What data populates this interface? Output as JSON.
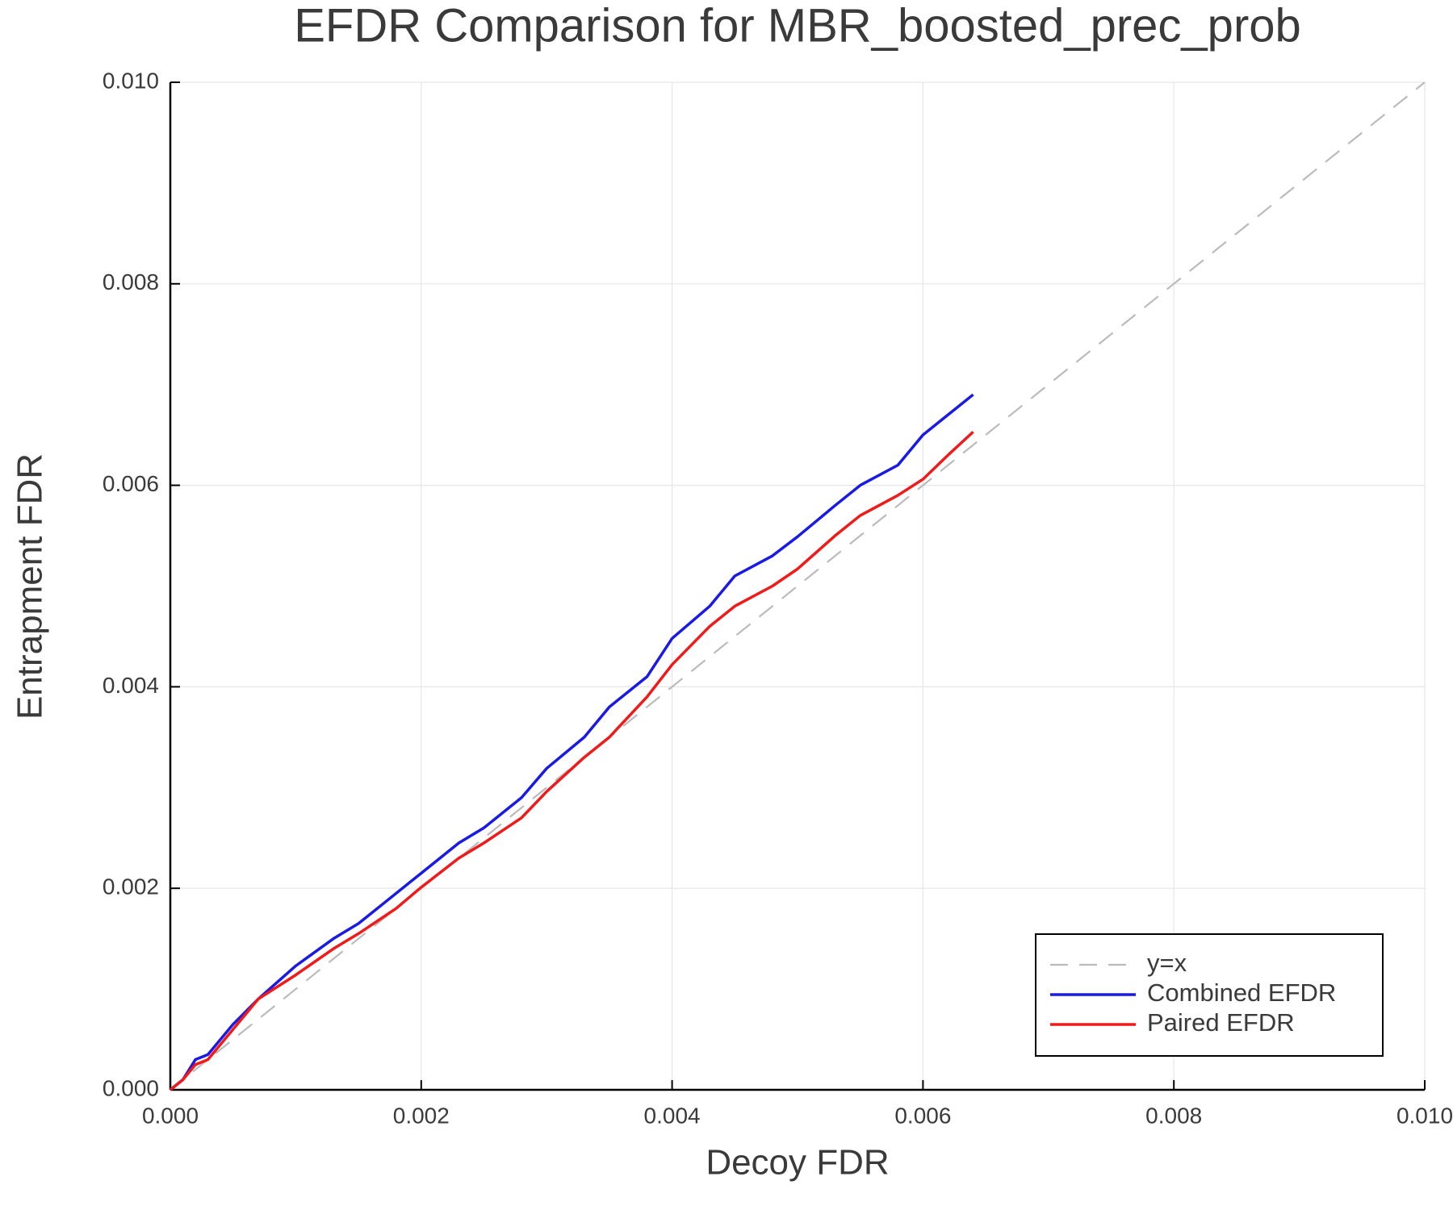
{
  "chart_data": {
    "type": "line",
    "title": "EFDR Comparison for MBR_boosted_prec_prob",
    "x_label": "Decoy FDR",
    "y_label": "Entrapment FDR",
    "xlim": [
      0,
      0.01
    ],
    "ylim": [
      0,
      0.01
    ],
    "xticks": [
      {
        "value": 0,
        "label": "0.000"
      },
      0.002,
      0.004,
      0.006,
      0.008,
      {
        "value": 0.01,
        "label": "0.010"
      }
    ],
    "yticks": [
      {
        "value": 0,
        "label": "0.000"
      },
      0.002,
      0.004,
      0.006,
      0.008,
      {
        "value": 0.01,
        "label": "0.010"
      }
    ],
    "grid": true,
    "legend": "bottom-right",
    "series": [
      {
        "name": "y=x",
        "color": "#bbbbbb",
        "style": "dashed",
        "x": [
          0,
          0.01
        ],
        "values": [
          0,
          0.01
        ]
      },
      {
        "name": "Combined EFDR",
        "color": "#1a1ae6",
        "style": "solid",
        "x": [
          0,
          0.0001,
          0.0002,
          0.0003,
          0.0005,
          0.0007,
          0.001,
          0.0013,
          0.0015,
          0.0018,
          0.002,
          0.0023,
          0.0025,
          0.0028,
          0.003,
          0.0033,
          0.0035,
          0.0038,
          0.004,
          0.0043,
          0.0045,
          0.0048,
          0.005,
          0.0053,
          0.0055,
          0.0058,
          0.006,
          0.0062,
          0.0064
        ],
        "values": [
          0,
          0.0001,
          0.0003,
          0.00035,
          0.00065,
          0.0009,
          0.00123,
          0.0015,
          0.00165,
          0.00195,
          0.00215,
          0.00245,
          0.0026,
          0.0029,
          0.00319,
          0.0035,
          0.0038,
          0.0041,
          0.00448,
          0.0048,
          0.0051,
          0.0053,
          0.00549,
          0.0058,
          0.006,
          0.0062,
          0.0065,
          0.0067,
          0.0069
        ]
      },
      {
        "name": "Paired EFDR",
        "color": "#f01a1a",
        "style": "solid",
        "x": [
          0,
          0.0001,
          0.0002,
          0.0003,
          0.0005,
          0.0007,
          0.001,
          0.0013,
          0.0015,
          0.0018,
          0.002,
          0.0023,
          0.0025,
          0.0028,
          0.003,
          0.0033,
          0.0035,
          0.0038,
          0.004,
          0.0043,
          0.0045,
          0.0048,
          0.005,
          0.0053,
          0.0055,
          0.0058,
          0.006,
          0.0062,
          0.0064
        ],
        "values": [
          0,
          0.0001,
          0.00025,
          0.0003,
          0.0006,
          0.0009,
          0.00114,
          0.0014,
          0.00155,
          0.0018,
          0.00201,
          0.0023,
          0.00245,
          0.0027,
          0.00296,
          0.0033,
          0.0035,
          0.0039,
          0.00422,
          0.0046,
          0.0048,
          0.005,
          0.00517,
          0.0055,
          0.0057,
          0.0059,
          0.00606,
          0.0063,
          0.00653
        ]
      }
    ]
  }
}
